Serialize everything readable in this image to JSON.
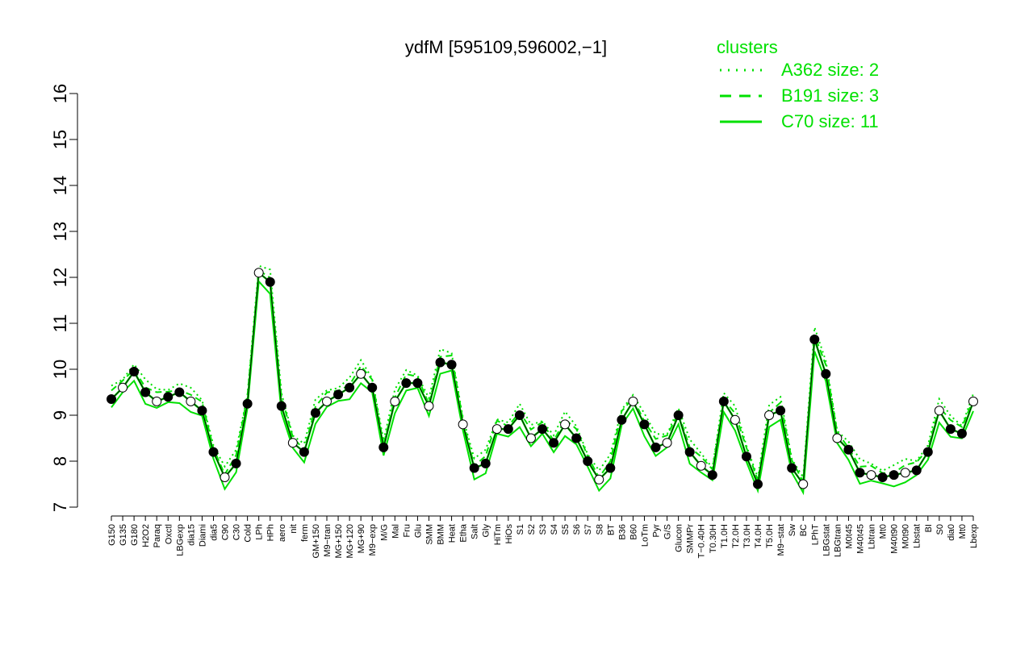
{
  "chart_data": {
    "type": "line",
    "title": "ydfM [595109,596002,−1]",
    "xlabel": "",
    "ylabel": "",
    "ylim": [
      7,
      16
    ],
    "yticks": [
      7,
      8,
      9,
      10,
      11,
      12,
      13,
      14,
      15,
      16
    ],
    "tick_labels": [
      "G150",
      "G135",
      "G180",
      "H2O2",
      "Paraq",
      "Oxctl",
      "LBGexp",
      "dia15",
      "Diami",
      "dia5",
      "C90",
      "C30",
      "Cold",
      "LPh",
      "HPh",
      "aero",
      "nit",
      "ferm",
      "GM+150",
      "M9−tran",
      "MG+150",
      "MG+120",
      "MG+90",
      "M9−exp",
      "M/G",
      "Mal",
      "Fru",
      "Glu",
      "SMM",
      "BMM",
      "Heat",
      "Etha",
      "Salt",
      "Gly",
      "HiTm",
      "HiOs",
      "S1",
      "S2",
      "S3",
      "S4",
      "S5",
      "S6",
      "S7",
      "S8",
      "BT",
      "B36",
      "B60",
      "LoTm",
      "Pyr",
      "G/S",
      "Glucon",
      "SMMPr",
      "T−0.40H",
      "T0.30H",
      "T1.0H",
      "T2.0H",
      "T3.0H",
      "T4.0H",
      "T5.0H",
      "M9−stat",
      "Sw",
      "BC",
      "LPhT",
      "LBGstat",
      "LBGtran",
      "M0t45",
      "M40t45",
      "Lbtran",
      "Mt0",
      "M40t90",
      "M0t90",
      "Lbstat",
      "BI",
      "S0",
      "dia0",
      "Mt0",
      "Lbexp"
    ],
    "series_values": [
      9.35,
      9.6,
      9.95,
      9.5,
      9.3,
      9.4,
      9.5,
      9.3,
      9.1,
      8.2,
      7.65,
      7.95,
      9.25,
      12.1,
      11.9,
      9.2,
      8.4,
      8.2,
      9.05,
      9.3,
      9.45,
      9.6,
      9.9,
      9.6,
      8.3,
      9.3,
      9.7,
      9.7,
      9.2,
      10.15,
      10.1,
      8.8,
      7.85,
      7.95,
      8.7,
      8.7,
      9.0,
      8.5,
      8.7,
      8.4,
      8.8,
      8.5,
      8.0,
      7.6,
      7.85,
      8.9,
      9.3,
      8.8,
      8.3,
      8.4,
      9.0,
      8.2,
      7.9,
      7.7,
      9.3,
      8.9,
      8.1,
      7.5,
      9.0,
      9.1,
      7.85,
      7.5,
      10.65,
      9.9,
      8.5,
      8.25,
      7.75,
      7.7,
      7.65,
      7.7,
      7.75,
      7.8,
      8.2,
      9.1,
      8.7,
      8.6,
      9.3
    ],
    "legend": {
      "title": "clusters",
      "position": "top-right",
      "entries": [
        {
          "label": "A362 size: 2",
          "style": "dotted"
        },
        {
          "label": "B191 size: 3",
          "style": "dashed"
        },
        {
          "label": "C70 size: 11",
          "style": "solid"
        }
      ]
    },
    "colors": {
      "cluster": "#00e000",
      "points": "#000000",
      "text": "#000000"
    },
    "grid": false
  }
}
